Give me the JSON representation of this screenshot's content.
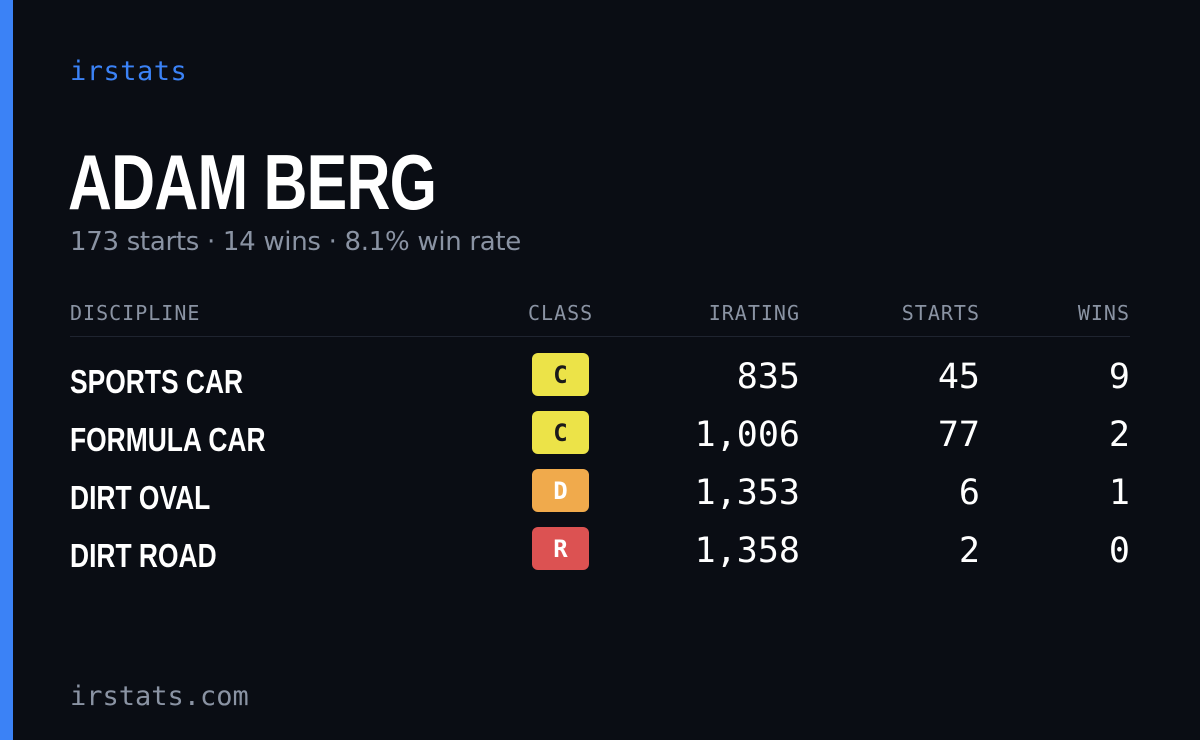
{
  "brand": "irstats",
  "player": {
    "name": "ADAM BERG",
    "summary": "173 starts · 14 wins · 8.1% win rate"
  },
  "table": {
    "headers": {
      "discipline": "DISCIPLINE",
      "class": "CLASS",
      "irating": "IRATING",
      "starts": "STARTS",
      "wins": "WINS"
    },
    "rows": [
      {
        "discipline": "SPORTS CAR",
        "class": "C",
        "class_color": "#ece348",
        "class_text_color": "#1a1a1a",
        "irating": "835",
        "starts": "45",
        "wins": "9"
      },
      {
        "discipline": "FORMULA CAR",
        "class": "C",
        "class_color": "#ece348",
        "class_text_color": "#1a1a1a",
        "irating": "1,006",
        "starts": "77",
        "wins": "2"
      },
      {
        "discipline": "DIRT OVAL",
        "class": "D",
        "class_color": "#f0aa4c",
        "class_text_color": "#ffffff",
        "irating": "1,353",
        "starts": "6",
        "wins": "1"
      },
      {
        "discipline": "DIRT ROAD",
        "class": "R",
        "class_color": "#dc5252",
        "class_text_color": "#ffffff",
        "irating": "1,358",
        "starts": "2",
        "wins": "0"
      }
    ]
  },
  "footer": "irstats.com",
  "colors": {
    "background": "#0a0d14",
    "accent": "#3b82f6",
    "muted": "#8a93a3",
    "text": "#ffffff"
  }
}
